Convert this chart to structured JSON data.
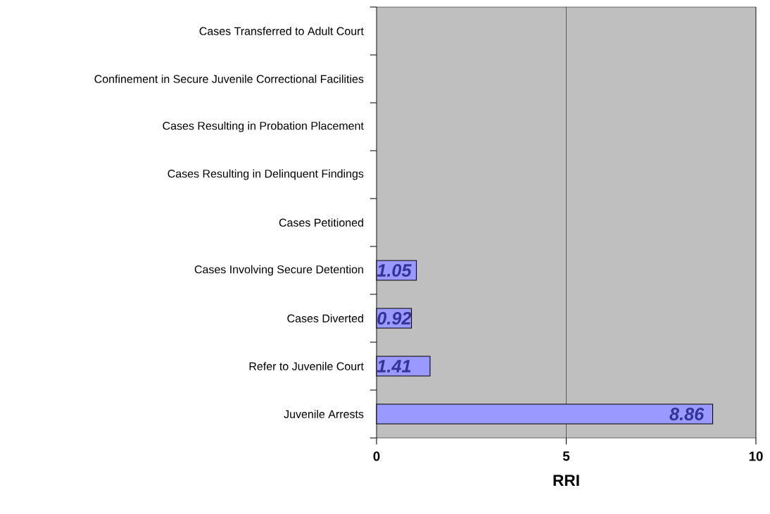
{
  "chart_data": {
    "type": "bar",
    "orientation": "horizontal",
    "xlabel": "RRI",
    "categories": [
      "Cases Transferred to Adult Court",
      "Confinement in Secure Juvenile Correctional Facilities",
      "Cases Resulting in Probation Placement",
      "Cases Resulting in Delinquent Findings",
      "Cases Petitioned",
      "Cases Involving Secure Detention",
      "Cases Diverted",
      "Refer to Juvenile Court",
      "Juvenile Arrests"
    ],
    "values": [
      null,
      null,
      null,
      null,
      null,
      1.05,
      0.92,
      1.41,
      8.86
    ],
    "color": "#9999ff",
    "xlim": [
      0,
      10
    ],
    "xticks": [
      0,
      5,
      10
    ],
    "grid": "x",
    "data_labels": true
  }
}
